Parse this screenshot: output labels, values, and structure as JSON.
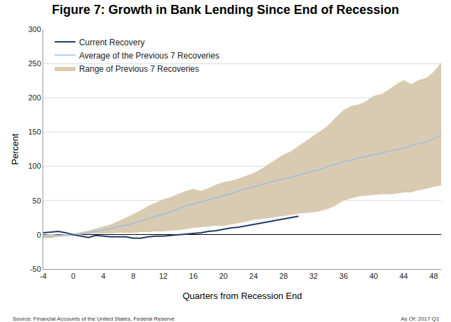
{
  "chart_data": {
    "type": "line",
    "title": "Figure 7: Growth in Bank Lending Since End of Recession",
    "x_label": "Quarters from Recession End",
    "y_label": "Percent",
    "source": "Source: Financial Accounts of the United States, Federal Reserve",
    "as_of": "As Of: 2017 Q1",
    "x": [
      -4,
      -3,
      -2,
      -1,
      0,
      1,
      2,
      3,
      4,
      5,
      6,
      7,
      8,
      9,
      10,
      11,
      12,
      13,
      14,
      15,
      16,
      17,
      18,
      19,
      20,
      21,
      22,
      23,
      24,
      25,
      26,
      27,
      28,
      29,
      30,
      31,
      32,
      33,
      34,
      35,
      36,
      37,
      38,
      39,
      40,
      41,
      42,
      43,
      44,
      45,
      46,
      47,
      48,
      49
    ],
    "series": [
      {
        "name": "Range of Previous 7 Recoveries",
        "type": "band",
        "color": "#d9cbb1",
        "lower": [
          -5,
          -5,
          -3,
          -2,
          0,
          1,
          1,
          2,
          2,
          2,
          3,
          3,
          3,
          4,
          4,
          5,
          5,
          6,
          7,
          8,
          10,
          11,
          12,
          13,
          13,
          15,
          17,
          19,
          22,
          23,
          24,
          26,
          27,
          29,
          31,
          32,
          33,
          35,
          38,
          43,
          50,
          53,
          56,
          57,
          58,
          59,
          59,
          60,
          62,
          62,
          65,
          67,
          70,
          72
        ],
        "upper": [
          0,
          1,
          0,
          1,
          2,
          4,
          6,
          9,
          12,
          15,
          20,
          25,
          30,
          36,
          42,
          47,
          52,
          55,
          60,
          64,
          67,
          64,
          68,
          73,
          77,
          79,
          82,
          86,
          90,
          96,
          103,
          110,
          117,
          122,
          130,
          137,
          145,
          152,
          160,
          172,
          182,
          188,
          190,
          195,
          203,
          205,
          212,
          220,
          226,
          220,
          226,
          229,
          238,
          252
        ]
      },
      {
        "name": "Average of the Previous 7 Recoveries",
        "type": "line",
        "color": "#9fbfe2",
        "values": [
          -3,
          -2,
          -1,
          -1,
          0,
          1,
          3,
          5,
          7,
          9,
          12,
          14,
          17,
          20,
          24,
          27,
          30,
          34,
          38,
          42,
          45,
          48,
          51,
          54,
          57,
          60,
          64,
          67,
          70,
          73,
          76,
          79,
          82,
          84,
          87,
          90,
          93,
          96,
          100,
          103,
          107,
          109,
          112,
          114,
          117,
          119,
          122,
          124,
          127,
          130,
          133,
          136,
          140,
          146
        ]
      },
      {
        "name": "Current Recovery",
        "type": "line",
        "color": "#1f3a68",
        "values": [
          3,
          4,
          5,
          3,
          0,
          -2,
          -4,
          -1,
          -2,
          -3,
          -3,
          -3,
          -5,
          -5,
          -3,
          -2,
          -2,
          -1,
          0,
          1,
          2,
          3,
          5,
          6,
          8,
          10,
          11,
          13,
          15,
          17,
          19,
          21,
          23,
          25,
          27,
          null,
          null,
          null,
          null,
          null,
          null,
          null,
          null,
          null,
          null,
          null,
          null,
          null,
          null,
          null,
          null,
          null,
          null,
          null
        ]
      }
    ],
    "xlim": [
      -4,
      49
    ],
    "xticks": [
      -4,
      0,
      4,
      8,
      12,
      16,
      20,
      24,
      28,
      32,
      36,
      40,
      44,
      48
    ],
    "ylim": [
      -50,
      300
    ],
    "yticks": [
      -50,
      0,
      50,
      100,
      150,
      200,
      250,
      300
    ],
    "grid": true,
    "legend": "upper left"
  }
}
